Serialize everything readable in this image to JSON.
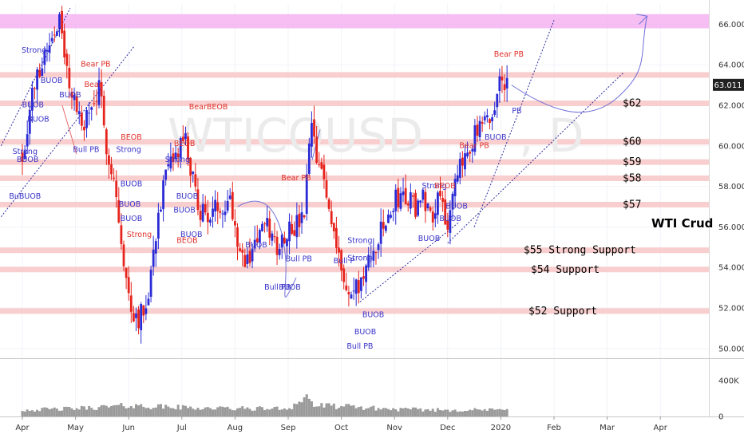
{
  "chart_data": {
    "type": "candlestick",
    "symbol": "WTICOUSD",
    "watermark_suffix": ", D",
    "note": "WTI Crud",
    "price_axis": {
      "ylim": [
        49.6,
        67.0
      ],
      "ticks": [
        "66.000",
        "64.000",
        "62.000",
        "60.000",
        "58.000",
        "56.000",
        "54.000",
        "52.000",
        "50.000"
      ],
      "tick_values": [
        66,
        64,
        62,
        60,
        58,
        56,
        54,
        52,
        50
      ],
      "current_price": "63.011",
      "current_value": 63.011
    },
    "volume_axis": {
      "ticks": [
        "400K",
        "0"
      ],
      "tick_values": [
        400000,
        0
      ],
      "ylim": [
        0,
        620000
      ]
    },
    "time_axis": {
      "labels": [
        "Apr",
        "May",
        "Jun",
        "Jul",
        "Aug",
        "Sep",
        "Oct",
        "Nov",
        "Dec",
        "2020",
        "Feb",
        "Mar",
        "Apr"
      ],
      "month_index": [
        0,
        1,
        2,
        3,
        4,
        5,
        6,
        7,
        8,
        9,
        10,
        11,
        12
      ]
    },
    "resistance_zone": {
      "from": 65.8,
      "to": 66.5,
      "color": "#f5b3f0"
    },
    "sr_levels": [
      {
        "label": "",
        "value": 63.5
      },
      {
        "label": "$62",
        "value": 62.1
      },
      {
        "label": "$60",
        "value": 60.2
      },
      {
        "label": "$59",
        "value": 59.2
      },
      {
        "label": "$58",
        "value": 58.4
      },
      {
        "label": "$57",
        "value": 57.1
      },
      {
        "label": "$55 Strong Support",
        "value": 54.85
      },
      {
        "label": "$54 Support",
        "value": 53.9
      },
      {
        "label": "$52 Support",
        "value": 51.85
      }
    ],
    "colors": {
      "up": "#2a2ad6",
      "down": "#e6231c",
      "level": "#f7c7c5",
      "volume": "#9a9a9a",
      "trend": "#2b2b9e"
    },
    "close_path": [
      [
        0,
        59.5
      ],
      [
        0.18,
        62.5
      ],
      [
        0.4,
        64.5
      ],
      [
        0.7,
        66.3
      ],
      [
        0.8,
        64.0
      ],
      [
        1.0,
        62.0
      ],
      [
        1.1,
        61.0
      ],
      [
        1.25,
        61.5
      ],
      [
        1.45,
        62.8
      ],
      [
        1.55,
        60.5
      ],
      [
        1.75,
        58.0
      ],
      [
        1.9,
        54.0
      ],
      [
        2.05,
        52.0
      ],
      [
        2.2,
        51.5
      ],
      [
        2.35,
        52.5
      ],
      [
        2.55,
        56.5
      ],
      [
        2.7,
        58.5
      ],
      [
        2.9,
        59.5
      ],
      [
        3.05,
        60.5
      ],
      [
        3.15,
        59.0
      ],
      [
        3.3,
        57.0
      ],
      [
        3.5,
        56.5
      ],
      [
        3.7,
        57.0
      ],
      [
        3.9,
        57.5
      ],
      [
        4.05,
        55.5
      ],
      [
        4.2,
        54.0
      ],
      [
        4.4,
        55.5
      ],
      [
        4.6,
        56.0
      ],
      [
        4.8,
        55.0
      ],
      [
        5.0,
        56.0
      ],
      [
        5.15,
        56.0
      ],
      [
        5.3,
        56.5
      ],
      [
        5.45,
        61.5
      ],
      [
        5.5,
        59.5
      ],
      [
        5.65,
        58.5
      ],
      [
        5.8,
        56.5
      ],
      [
        5.95,
        55.0
      ],
      [
        6.05,
        53.0
      ],
      [
        6.15,
        52.5
      ],
      [
        6.3,
        53.0
      ],
      [
        6.5,
        54.0
      ],
      [
        6.7,
        55.5
      ],
      [
        6.9,
        56.5
      ],
      [
        7.05,
        57.5
      ],
      [
        7.2,
        57.5
      ],
      [
        7.4,
        57.0
      ],
      [
        7.55,
        57.5
      ],
      [
        7.7,
        56.5
      ],
      [
        7.85,
        58.0
      ],
      [
        8.0,
        56.0
      ],
      [
        8.15,
        58.0
      ],
      [
        8.3,
        59.5
      ],
      [
        8.5,
        60.5
      ],
      [
        8.7,
        61.0
      ],
      [
        8.85,
        61.5
      ],
      [
        9.0,
        63.5
      ],
      [
        9.1,
        63.2
      ],
      [
        9.13,
        63.01
      ]
    ],
    "volume_shape": [
      [
        0,
        0.18
      ],
      [
        1,
        0.22
      ],
      [
        2,
        0.3
      ],
      [
        3,
        0.25
      ],
      [
        4,
        0.22
      ],
      [
        5,
        0.22
      ],
      [
        5.35,
        0.55
      ],
      [
        5.5,
        0.3
      ],
      [
        6,
        0.28
      ],
      [
        7,
        0.2
      ],
      [
        8,
        0.18
      ],
      [
        9.05,
        0.18
      ],
      [
        9.15,
        0.3
      ]
    ],
    "signals": [
      {
        "text": "Strong",
        "m": 0.05,
        "v": 59.6,
        "c": "blue"
      },
      {
        "text": "BUOB",
        "m": 0.1,
        "v": 59.2,
        "c": "blue"
      },
      {
        "text": "BuBUOB",
        "m": 0.05,
        "v": 57.4,
        "c": "blue"
      },
      {
        "text": "Strong",
        "m": 0.22,
        "v": 64.6,
        "c": "blue"
      },
      {
        "text": "BUOB",
        "m": 0.55,
        "v": 63.1,
        "c": "blue"
      },
      {
        "text": "BUOB",
        "m": 0.2,
        "v": 61.9,
        "c": "blue"
      },
      {
        "text": "BUOB",
        "m": 0.3,
        "v": 61.2,
        "c": "blue"
      },
      {
        "text": "BUOB",
        "m": 0.9,
        "v": 62.4,
        "c": "blue"
      },
      {
        "text": "Bear PB",
        "m": 1.38,
        "v": 63.9,
        "c": "red"
      },
      {
        "text": "Bear",
        "m": 1.33,
        "v": 62.9,
        "c": "red"
      },
      {
        "text": "Bull PB",
        "m": 1.2,
        "v": 59.7,
        "c": "blue"
      },
      {
        "text": "BEOB",
        "m": 2.05,
        "v": 60.3,
        "c": "red"
      },
      {
        "text": "Strong",
        "m": 2.0,
        "v": 59.7,
        "c": "blue"
      },
      {
        "text": "BUOB",
        "m": 2.05,
        "v": 58.0,
        "c": "blue"
      },
      {
        "text": "BUOB",
        "m": 2.02,
        "v": 57.0,
        "c": "blue"
      },
      {
        "text": "BUOB",
        "m": 2.05,
        "v": 56.3,
        "c": "blue"
      },
      {
        "text": "Strong",
        "m": 2.2,
        "v": 55.5,
        "c": "red"
      },
      {
        "text": "BearBEOB",
        "m": 3.5,
        "v": 61.8,
        "c": "red"
      },
      {
        "text": "BEOB",
        "m": 3.05,
        "v": 60.0,
        "c": "red"
      },
      {
        "text": "Strong",
        "m": 2.92,
        "v": 59.2,
        "c": "blue"
      },
      {
        "text": "BUOB",
        "m": 3.1,
        "v": 57.4,
        "c": "blue"
      },
      {
        "text": "BUOB",
        "m": 3.05,
        "v": 56.7,
        "c": "blue"
      },
      {
        "text": "BEOB",
        "m": 3.1,
        "v": 55.2,
        "c": "red"
      },
      {
        "text": "BUOB",
        "m": 3.18,
        "v": 55.5,
        "c": "blue"
      },
      {
        "text": "BUOB",
        "m": 4.4,
        "v": 55.0,
        "c": "blue"
      },
      {
        "text": "Bear PB",
        "m": 5.15,
        "v": 58.3,
        "c": "red"
      },
      {
        "text": "Bull PB",
        "m": 5.2,
        "v": 54.3,
        "c": "blue"
      },
      {
        "text": "Bull PB",
        "m": 4.8,
        "v": 52.9,
        "c": "blue"
      },
      {
        "text": "BUOB",
        "m": 5.03,
        "v": 52.9,
        "c": "blue"
      },
      {
        "text": "Strong",
        "m": 6.35,
        "v": 55.2,
        "c": "blue"
      },
      {
        "text": "Bull P",
        "m": 6.05,
        "v": 54.2,
        "c": "blue"
      },
      {
        "text": "Strong",
        "m": 6.35,
        "v": 54.35,
        "c": "blue"
      },
      {
        "text": "BUOB",
        "m": 6.6,
        "v": 51.55,
        "c": "blue"
      },
      {
        "text": "BUOB",
        "m": 6.45,
        "v": 50.7,
        "c": "blue"
      },
      {
        "text": "Bull PB",
        "m": 6.35,
        "v": 50.0,
        "c": "blue"
      },
      {
        "text": "Strong",
        "m": 7.75,
        "v": 57.9,
        "c": "blue"
      },
      {
        "text": "BEOB",
        "m": 7.95,
        "v": 57.9,
        "c": "red"
      },
      {
        "text": "BUOB",
        "m": 7.65,
        "v": 55.3,
        "c": "blue"
      },
      {
        "text": "BUOB",
        "m": 8.17,
        "v": 56.9,
        "c": "blue"
      },
      {
        "text": "BUOB",
        "m": 8.05,
        "v": 56.3,
        "c": "blue"
      },
      {
        "text": "Bear PB",
        "m": 8.5,
        "v": 59.9,
        "c": "red"
      },
      {
        "text": "BUOB",
        "m": 8.9,
        "v": 60.3,
        "c": "blue"
      },
      {
        "text": "Bear PB",
        "m": 9.15,
        "v": 64.4,
        "c": "red"
      },
      {
        "text": "PB",
        "m": 9.3,
        "v": 61.6,
        "c": "blue"
      }
    ]
  }
}
